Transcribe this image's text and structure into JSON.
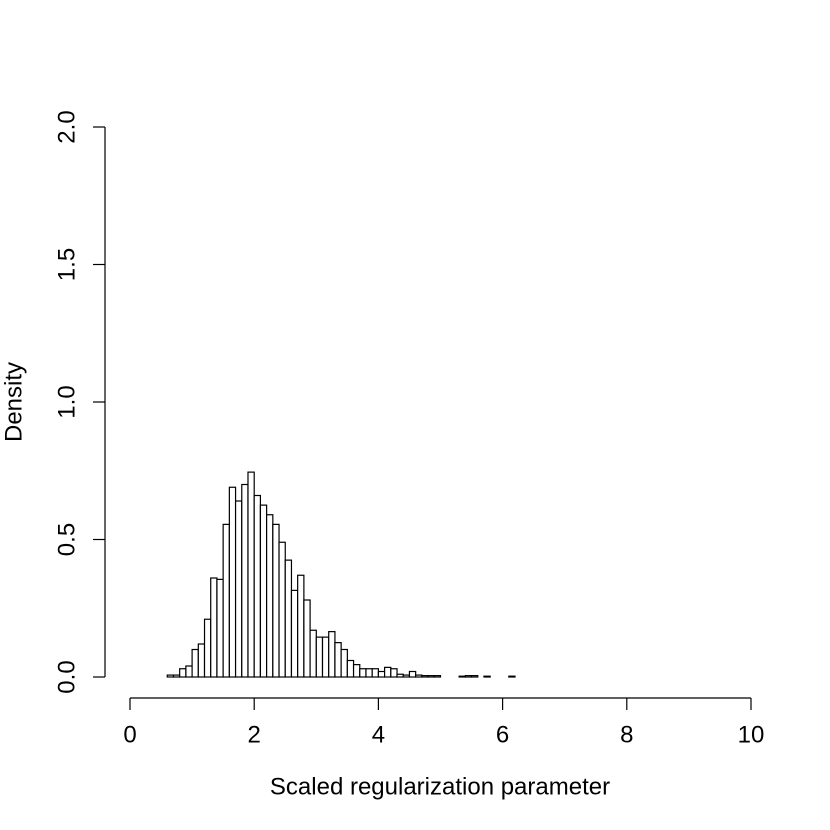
{
  "chart_data": {
    "type": "histogram",
    "xlabel": "Scaled regularization parameter",
    "ylabel": "Density",
    "bins": [
      0,
      0.1,
      0.2,
      0.3,
      0.4,
      0.5,
      0.6,
      0.7,
      0.8,
      0.9,
      1,
      1.1,
      1.2,
      1.3,
      1.4,
      1.5,
      1.6,
      1.7,
      1.8,
      1.9,
      2,
      2.1,
      2.2,
      2.3,
      2.4,
      2.5,
      2.6,
      2.7,
      2.8,
      2.9,
      3,
      3.1,
      3.2,
      3.3,
      3.4,
      3.5,
      3.6,
      3.7,
      3.8,
      3.9,
      4,
      4.1,
      4.2,
      4.3,
      4.4,
      4.5,
      4.6,
      4.7,
      4.8,
      4.9,
      5,
      5.1,
      5.2,
      5.3,
      5.4,
      5.5,
      5.6,
      5.7,
      5.8,
      5.9,
      6,
      6.1,
      6.2,
      6.3,
      6.4,
      6.5,
      6.6,
      6.7,
      6.8,
      6.9,
      7,
      7.1,
      7.2,
      7.3,
      7.4,
      7.5,
      7.6,
      7.7,
      7.8,
      7.9,
      8,
      8.1,
      8.2,
      8.3,
      8.4,
      8.5,
      8.6,
      8.7,
      8.8,
      8.9,
      9,
      9.1,
      9.2,
      9.3,
      9.4,
      9.5,
      9.6,
      9.7,
      9.8,
      9.9,
      10
    ],
    "values": [
      0,
      0,
      0,
      0,
      0,
      0,
      0.007,
      0.007,
      0.03,
      0.04,
      0.1,
      0.12,
      0.21,
      0.36,
      0.355,
      0.555,
      0.69,
      0.64,
      0.7,
      0.745,
      0.66,
      0.625,
      0.59,
      0.555,
      0.49,
      0.425,
      0.315,
      0.37,
      0.28,
      0.17,
      0.145,
      0.145,
      0.165,
      0.125,
      0.1,
      0.06,
      0.045,
      0.03,
      0.03,
      0.03,
      0.02,
      0.035,
      0.03,
      0.01,
      0.007,
      0.02,
      0.007,
      0.005,
      0.005,
      0.005,
      0,
      0,
      0,
      0.003,
      0.005,
      0.005,
      0,
      0.003,
      0,
      0,
      0,
      0.003,
      0,
      0,
      0,
      0,
      0,
      0,
      0,
      0,
      0,
      0,
      0,
      0,
      0,
      0,
      0,
      0,
      0,
      0,
      0,
      0,
      0,
      0,
      0,
      0,
      0,
      0,
      0,
      0,
      0,
      0,
      0,
      0,
      0,
      0,
      0,
      0,
      0,
      0
    ],
    "color": "#ffffff",
    "edgecolor": "#000000",
    "xlim": [
      0,
      10
    ],
    "xticks": [
      0,
      2,
      4,
      6,
      8,
      10
    ],
    "ylim": [
      0,
      2
    ],
    "yticks": [
      {
        "value": 0,
        "label": "0.0"
      },
      0.5,
      {
        "value": 1,
        "label": "1.0"
      },
      1.5,
      {
        "value": 2,
        "label": "2.0"
      }
    ]
  }
}
